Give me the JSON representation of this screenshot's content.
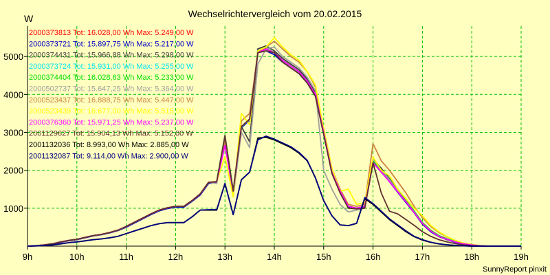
{
  "chart_data": {
    "type": "line",
    "title": "Wechselrichtervergleich vom 20.02.2015",
    "ylabel": "W",
    "footer": "SunnyReport pinxit",
    "x_ticks": [
      "9h",
      "10h",
      "11h",
      "12h",
      "13h",
      "14h",
      "15h",
      "16h",
      "17h",
      "18h",
      "19h"
    ],
    "y_ticks": [
      1000,
      2000,
      3000,
      4000,
      5000
    ],
    "xlim": [
      9,
      19
    ],
    "ylim": [
      0,
      5800
    ],
    "grid": true,
    "legend_position": "top-left",
    "x": [
      9.0,
      9.1667,
      9.3333,
      9.5,
      9.6667,
      9.8333,
      10.0,
      10.1667,
      10.3333,
      10.5,
      10.6667,
      10.8333,
      11.0,
      11.1667,
      11.3333,
      11.5,
      11.6667,
      11.8333,
      12.0,
      12.1667,
      12.3333,
      12.5,
      12.6667,
      12.8333,
      13.0,
      13.1667,
      13.3333,
      13.5,
      13.6667,
      13.8333,
      14.0,
      14.1667,
      14.3333,
      14.5,
      14.6667,
      14.8333,
      15.0,
      15.1667,
      15.3333,
      15.5,
      15.6667,
      15.8333,
      16.0,
      16.1667,
      16.3333,
      16.5,
      16.6667,
      16.8333,
      17.0,
      17.1667,
      17.3333,
      17.5,
      17.6667,
      17.8333,
      18.0,
      18.1667,
      18.3333,
      18.5,
      18.6667,
      18.8333,
      19.0
    ],
    "series": [
      {
        "name": "2000373813",
        "total": "16.028,00",
        "max": "5.249,00",
        "color": "#ff0000",
        "values": [
          0,
          10,
          30,
          60,
          110,
          150,
          180,
          230,
          280,
          310,
          360,
          420,
          520,
          630,
          740,
          850,
          950,
          1010,
          1050,
          1050,
          1200,
          1380,
          1680,
          1700,
          2900,
          1450,
          3150,
          3350,
          5150,
          5200,
          5100,
          4900,
          4750,
          4600,
          4350,
          4000,
          3000,
          1950,
          1450,
          1050,
          1000,
          1050,
          2250,
          2000,
          1750,
          1450,
          1180,
          900,
          600,
          400,
          260,
          180,
          110,
          60,
          30,
          10,
          0,
          0,
          0,
          0,
          0
        ]
      },
      {
        "name": "2000373721",
        "total": "15.897,75",
        "max": "5.217,00",
        "color": "#0000c8",
        "values": [
          0,
          8,
          25,
          55,
          100,
          140,
          170,
          220,
          270,
          300,
          350,
          410,
          500,
          610,
          720,
          830,
          930,
          990,
          1030,
          1030,
          1180,
          1350,
          1650,
          1680,
          2850,
          1430,
          3120,
          3320,
          5100,
          5150,
          5050,
          4850,
          4700,
          4550,
          4300,
          3950,
          2950,
          1920,
          1420,
          1030,
          980,
          1020,
          2200,
          1950,
          1700,
          1420,
          1150,
          880,
          580,
          380,
          250,
          170,
          100,
          55,
          28,
          9,
          0,
          0,
          0,
          0,
          0
        ]
      },
      {
        "name": "2000374431",
        "total": "15.966,88",
        "max": "5.298,00",
        "color": "#404040",
        "values": [
          0,
          10,
          30,
          60,
          110,
          150,
          180,
          230,
          280,
          310,
          360,
          420,
          520,
          630,
          740,
          850,
          950,
          1010,
          1050,
          1050,
          1200,
          1380,
          1680,
          1700,
          2920,
          1450,
          3150,
          2750,
          5200,
          5280,
          5150,
          4950,
          4800,
          4650,
          4400,
          4050,
          3050,
          1980,
          1450,
          1050,
          1000,
          1050,
          2300,
          2050,
          1780,
          1470,
          1200,
          920,
          610,
          410,
          270,
          185,
          115,
          65,
          32,
          10,
          0,
          0,
          0,
          0,
          0
        ]
      },
      {
        "name": "2000373724",
        "total": "15.931,00",
        "max": "5.255,00",
        "color": "#00e5ee",
        "values": [
          0,
          10,
          30,
          60,
          110,
          150,
          180,
          230,
          280,
          310,
          360,
          420,
          520,
          630,
          740,
          850,
          950,
          1010,
          1050,
          1050,
          1200,
          1380,
          1680,
          1700,
          2880,
          1440,
          3140,
          3340,
          5150,
          5200,
          5100,
          4900,
          4750,
          4600,
          4350,
          4000,
          3000,
          1950,
          1450,
          1050,
          1000,
          1050,
          2250,
          2000,
          1750,
          1450,
          1180,
          900,
          600,
          400,
          260,
          180,
          110,
          60,
          30,
          10,
          0,
          0,
          0,
          0,
          0
        ]
      },
      {
        "name": "2000374404",
        "total": "16.028,63",
        "max": "5.233,00",
        "color": "#00dd00",
        "values": [
          0,
          10,
          30,
          60,
          110,
          150,
          180,
          230,
          280,
          310,
          360,
          420,
          520,
          630,
          740,
          850,
          950,
          1010,
          1050,
          1050,
          1200,
          1380,
          1680,
          1700,
          2900,
          1450,
          3150,
          3350,
          5150,
          5220,
          5100,
          4900,
          4750,
          4600,
          4350,
          4000,
          3000,
          1950,
          1450,
          1050,
          1000,
          1050,
          2250,
          2000,
          1750,
          1450,
          1200,
          920,
          620,
          420,
          280,
          190,
          120,
          65,
          32,
          10,
          0,
          0,
          0,
          0,
          0
        ]
      },
      {
        "name": "2000502737",
        "total": "15.647,25",
        "max": "5.364,00",
        "color": "#a0a0a0",
        "values": [
          0,
          10,
          30,
          60,
          110,
          150,
          180,
          230,
          280,
          310,
          360,
          420,
          520,
          630,
          740,
          850,
          950,
          1010,
          1050,
          1050,
          1200,
          1380,
          1680,
          1650,
          2750,
          1300,
          3000,
          2600,
          4800,
          5200,
          5250,
          5000,
          4850,
          4700,
          4450,
          4100,
          2000,
          1500,
          1100,
          900,
          950,
          1000,
          2300,
          2000,
          1750,
          1450,
          1180,
          900,
          600,
          400,
          260,
          180,
          110,
          60,
          30,
          10,
          0,
          0,
          0,
          0,
          0
        ]
      },
      {
        "name": "2000523437",
        "total": "16.888,75",
        "max": "5.447,00",
        "color": "#cd853f",
        "values": [
          0,
          10,
          30,
          60,
          110,
          150,
          180,
          230,
          280,
          310,
          360,
          420,
          520,
          630,
          740,
          850,
          950,
          1010,
          1050,
          1050,
          1200,
          1380,
          1680,
          1700,
          2800,
          1400,
          3300,
          3500,
          5100,
          5250,
          5400,
          5200,
          5000,
          4850,
          4600,
          4200,
          3100,
          2050,
          1500,
          1100,
          1050,
          1100,
          2700,
          2250,
          2000,
          1700,
          1400,
          1050,
          750,
          520,
          360,
          240,
          150,
          80,
          40,
          12,
          0,
          0,
          0,
          0,
          0
        ]
      },
      {
        "name": "2000523439",
        "total": "16.677,00",
        "max": "5.515,00",
        "color": "#ffff00",
        "values": [
          0,
          10,
          30,
          60,
          110,
          150,
          180,
          230,
          280,
          310,
          360,
          420,
          520,
          630,
          740,
          850,
          950,
          1010,
          1050,
          1050,
          1200,
          1380,
          1680,
          1700,
          2350,
          1300,
          3500,
          3200,
          5150,
          5250,
          5500,
          5250,
          5050,
          4900,
          4600,
          4250,
          3100,
          2050,
          1450,
          1500,
          1100,
          1150,
          2350,
          2000,
          1850,
          1500,
          1250,
          1000,
          800,
          550,
          380,
          250,
          150,
          80,
          40,
          12,
          0,
          0,
          0,
          0,
          0
        ]
      },
      {
        "name": "2000376360",
        "total": "15.971,25",
        "max": "5.237,00",
        "color": "#ff00ff",
        "values": [
          0,
          10,
          30,
          60,
          110,
          150,
          180,
          230,
          280,
          310,
          360,
          420,
          520,
          630,
          740,
          850,
          950,
          1010,
          1050,
          1050,
          1200,
          1380,
          1680,
          1700,
          2650,
          1450,
          3150,
          3350,
          5100,
          5200,
          5100,
          4900,
          4750,
          4600,
          4350,
          4000,
          3000,
          1950,
          1450,
          1050,
          1000,
          1050,
          2200,
          1950,
          1700,
          1430,
          1170,
          890,
          600,
          400,
          260,
          180,
          110,
          60,
          30,
          10,
          0,
          0,
          0,
          0,
          0
        ]
      },
      {
        "name": "2001129627",
        "total": "15.904,13",
        "max": "5.152,00",
        "color": "#603030",
        "values": [
          0,
          10,
          30,
          60,
          110,
          150,
          180,
          230,
          280,
          310,
          360,
          420,
          520,
          630,
          740,
          850,
          950,
          1010,
          1050,
          1050,
          1200,
          1380,
          1680,
          1700,
          2900,
          1450,
          3150,
          3350,
          5100,
          5150,
          5100,
          4850,
          4700,
          4550,
          4300,
          3950,
          2950,
          1920,
          1400,
          1000,
          980,
          1000,
          2200,
          1400,
          920,
          850,
          700,
          550,
          380,
          260,
          170,
          110,
          65,
          35,
          15,
          5,
          0,
          0,
          0,
          0,
          0
        ]
      },
      {
        "name": "2001132036",
        "total": "8.993,00",
        "max": "2.885,00",
        "color": "#000000",
        "values": [
          0,
          5,
          15,
          30,
          60,
          90,
          110,
          140,
          170,
          190,
          220,
          260,
          330,
          400,
          470,
          540,
          590,
          620,
          620,
          620,
          770,
          950,
          950,
          950,
          1650,
          830,
          1750,
          1950,
          2850,
          2870,
          2800,
          2700,
          2600,
          2450,
          2250,
          1800,
          1200,
          800,
          560,
          540,
          600,
          1250,
          1100,
          900,
          700,
          540,
          380,
          250,
          160,
          100,
          60,
          35,
          18,
          8,
          0,
          0,
          0,
          0,
          0,
          0,
          0
        ]
      },
      {
        "name": "2001132087",
        "total": "9.114,00",
        "max": "2.900,00",
        "color": "#000080",
        "values": [
          0,
          5,
          15,
          30,
          60,
          90,
          110,
          140,
          170,
          190,
          220,
          260,
          330,
          400,
          470,
          540,
          590,
          620,
          620,
          620,
          770,
          950,
          960,
          960,
          1650,
          830,
          1750,
          1950,
          2800,
          2900,
          2820,
          2720,
          2620,
          2470,
          2260,
          1800,
          1200,
          800,
          560,
          540,
          600,
          1280,
          1120,
          920,
          720,
          560,
          400,
          260,
          170,
          105,
          62,
          37,
          20,
          9,
          0,
          0,
          0,
          0,
          0,
          0,
          0
        ]
      }
    ]
  }
}
